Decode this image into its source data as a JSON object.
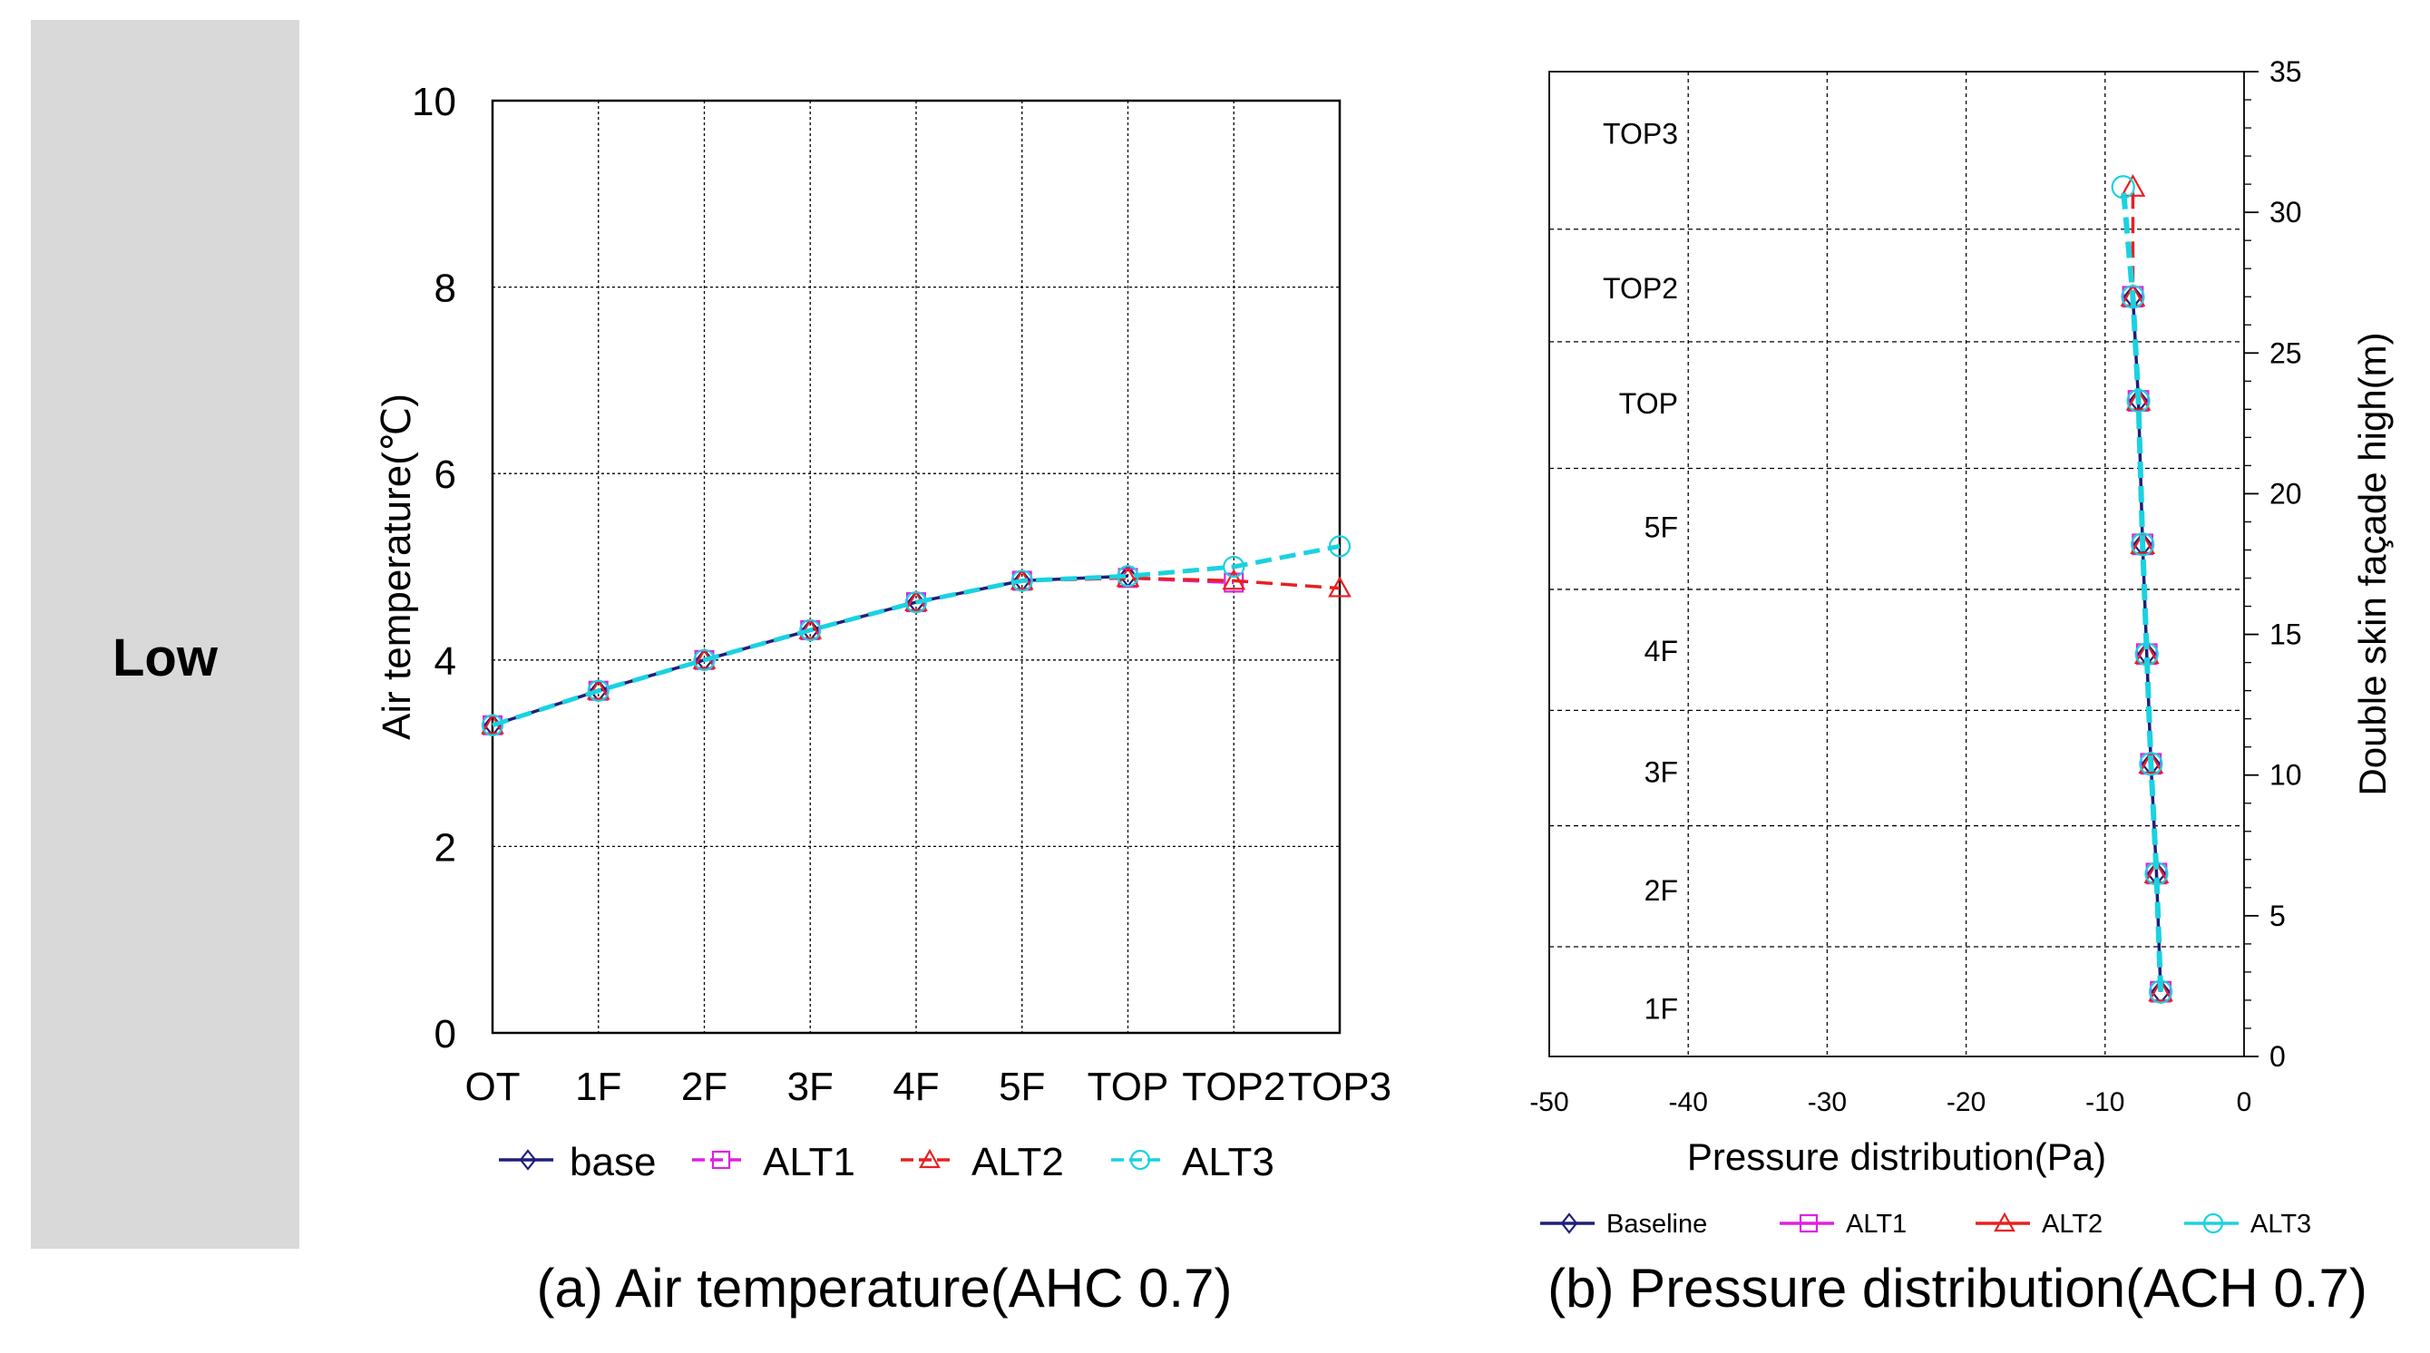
{
  "side_label": "Low",
  "chart_data": [
    {
      "type": "line",
      "title": "(a) Air temperature(AHC 0.7)",
      "xlabel": "",
      "ylabel": "Air temperature(℃)",
      "categories": [
        "OT",
        "1F",
        "2F",
        "3F",
        "4F",
        "5F",
        "TOP",
        "TOP2",
        "TOP3"
      ],
      "ylim": [
        0,
        10
      ],
      "yticks": [
        0,
        2,
        4,
        6,
        8,
        10
      ],
      "grid": true,
      "legend_position": "bottom",
      "series": [
        {
          "name": "base",
          "color": "#1f1f7a",
          "marker": "diamond",
          "values": [
            3.3,
            3.67,
            4.0,
            4.32,
            4.62,
            4.85,
            4.9,
            null,
            null
          ]
        },
        {
          "name": "ALT1",
          "color": "#e020e0",
          "marker": "square",
          "values": [
            3.3,
            3.67,
            4.0,
            4.32,
            4.62,
            4.85,
            4.88,
            4.83,
            null
          ]
        },
        {
          "name": "ALT2",
          "color": "#e82020",
          "marker": "triangle",
          "values": [
            3.3,
            3.67,
            4.0,
            4.32,
            4.62,
            4.85,
            4.88,
            4.85,
            4.77
          ]
        },
        {
          "name": "ALT3",
          "color": "#1ad2e0",
          "marker": "circle",
          "values": [
            3.3,
            3.67,
            4.0,
            4.32,
            4.62,
            4.85,
            4.9,
            5.0,
            5.22
          ]
        }
      ]
    },
    {
      "type": "line",
      "title": "(b) Pressure distribution(ACH 0.7)",
      "xlabel": "Pressure distribution(Pa)",
      "ylabel": "Double skin façade high(m)",
      "xlim": [
        -50,
        0
      ],
      "xticks": [
        -50,
        -40,
        -30,
        -20,
        -10,
        0
      ],
      "ylim": [
        0,
        35
      ],
      "yticks": [
        0,
        5,
        10,
        15,
        20,
        25,
        30,
        35
      ],
      "floor_boundaries": [
        3.9,
        8.2,
        12.3,
        16.6,
        20.9,
        25.4,
        29.4
      ],
      "floor_labels": [
        {
          "label": "1F",
          "y": 1.7
        },
        {
          "label": "2F",
          "y": 5.9
        },
        {
          "label": "3F",
          "y": 10.1
        },
        {
          "label": "4F",
          "y": 14.4
        },
        {
          "label": "5F",
          "y": 18.8
        },
        {
          "label": "TOP",
          "y": 23.2
        },
        {
          "label": "TOP2",
          "y": 27.3
        },
        {
          "label": "TOP3",
          "y": 32.8
        }
      ],
      "legend_position": "bottom",
      "series": [
        {
          "name": "Baseline",
          "color": "#1f1f7a",
          "marker": "diamond",
          "points": [
            [
              -6,
              2.3
            ],
            [
              -6.3,
              6.5
            ],
            [
              -6.7,
              10.4
            ],
            [
              -7.0,
              14.3
            ],
            [
              -7.3,
              18.2
            ],
            [
              -7.6,
              23.3
            ],
            [
              -8.0,
              27.0
            ]
          ]
        },
        {
          "name": "ALT1",
          "color": "#e020e0",
          "marker": "square",
          "points": [
            [
              -6,
              2.3
            ],
            [
              -6.3,
              6.5
            ],
            [
              -6.7,
              10.4
            ],
            [
              -7.0,
              14.3
            ],
            [
              -7.3,
              18.2
            ],
            [
              -7.6,
              23.3
            ],
            [
              -8.0,
              27.0
            ]
          ]
        },
        {
          "name": "ALT2",
          "color": "#e82020",
          "marker": "triangle",
          "points": [
            [
              -6,
              2.3
            ],
            [
              -6.3,
              6.5
            ],
            [
              -6.7,
              10.4
            ],
            [
              -7.0,
              14.3
            ],
            [
              -7.3,
              18.2
            ],
            [
              -7.6,
              23.3
            ],
            [
              -8.0,
              27.0
            ],
            [
              -8.0,
              30.9
            ]
          ]
        },
        {
          "name": "ALT3",
          "color": "#1ad2e0",
          "marker": "circle",
          "points": [
            [
              -6,
              2.3
            ],
            [
              -6.3,
              6.5
            ],
            [
              -6.7,
              10.4
            ],
            [
              -7.0,
              14.3
            ],
            [
              -7.3,
              18.2
            ],
            [
              -7.6,
              23.3
            ],
            [
              -8.0,
              27.0
            ],
            [
              -8.7,
              30.9
            ]
          ]
        }
      ]
    }
  ]
}
